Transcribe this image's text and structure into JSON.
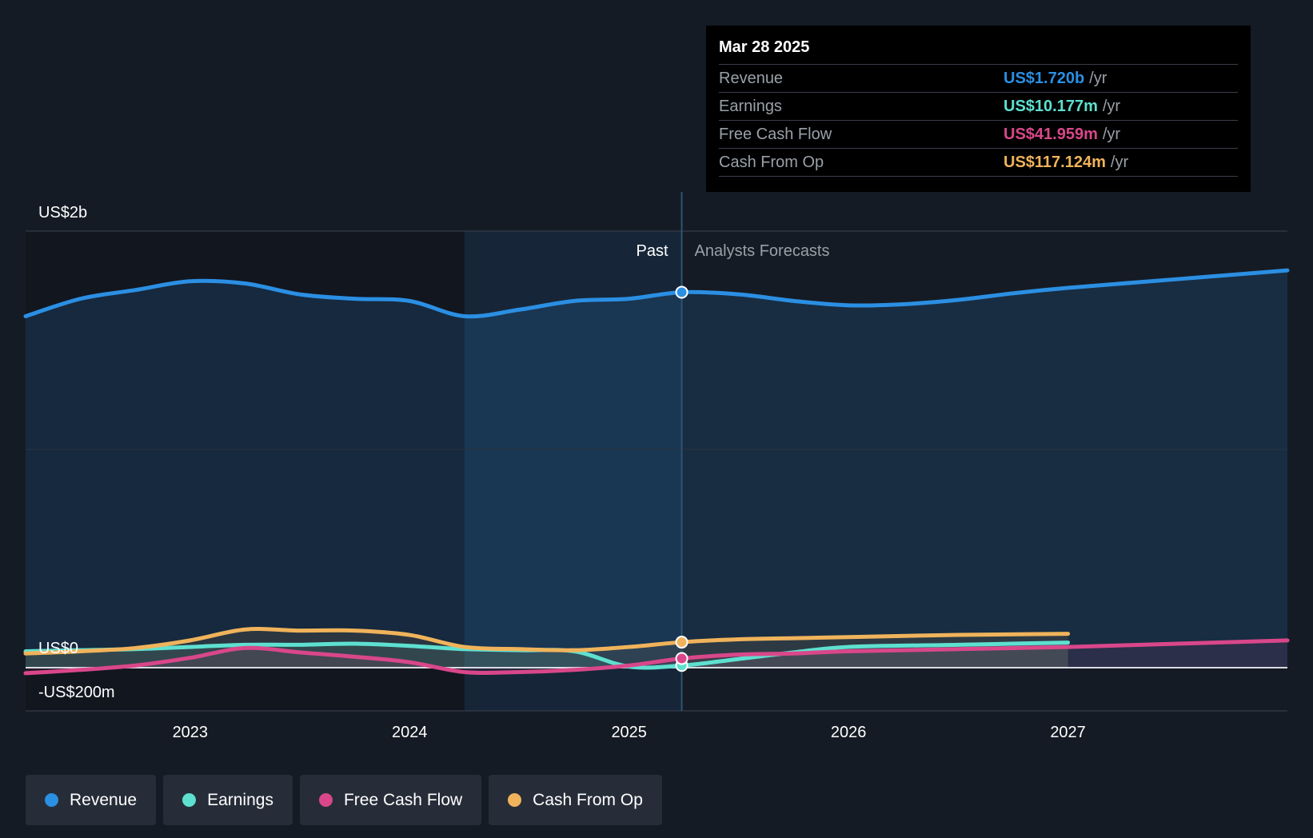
{
  "tooltip": {
    "date": "Mar 28 2025",
    "rows": [
      {
        "name": "Revenue",
        "value": "US$1.720b",
        "unit": "/yr",
        "color": "#2b8fe3"
      },
      {
        "name": "Earnings",
        "value": "US$10.177m",
        "unit": "/yr",
        "color": "#5ee0d0"
      },
      {
        "name": "Free Cash Flow",
        "value": "US$41.959m",
        "unit": "/yr",
        "color": "#d9478a"
      },
      {
        "name": "Cash From Op",
        "value": "US$117.124m",
        "unit": "/yr",
        "color": "#f0b35b"
      }
    ]
  },
  "legend": [
    {
      "label": "Revenue",
      "color": "#2b8fe3"
    },
    {
      "label": "Earnings",
      "color": "#5ee0d0"
    },
    {
      "label": "Free Cash Flow",
      "color": "#d9478a"
    },
    {
      "label": "Cash From Op",
      "color": "#f0b35b"
    }
  ],
  "chart_data": {
    "type": "area",
    "y_axis_labels": [
      "US$2b",
      "US$0",
      "-US$200m"
    ],
    "ylim": [
      -200,
      2000
    ],
    "y_unit": "US$m",
    "x_ticks": [
      "2023",
      "2024",
      "2025",
      "2026",
      "2027"
    ],
    "xlim": [
      2022.25,
      2028.0
    ],
    "grid": true,
    "past_label": "Past",
    "forecast_label": "Analysts Forecasts",
    "past_highlight_start": 2024.25,
    "present_date": 2025.24,
    "series": [
      {
        "name": "Revenue",
        "color": "#2b8fe3",
        "x": [
          2022.25,
          2022.5,
          2022.75,
          2023.0,
          2023.25,
          2023.5,
          2023.75,
          2024.0,
          2024.25,
          2024.5,
          2024.75,
          2025.0,
          2025.24,
          2025.5,
          2025.75,
          2026.0,
          2026.25,
          2026.5,
          2026.75,
          2027.0,
          2027.5,
          2028.0
        ],
        "values": [
          1610,
          1690,
          1730,
          1770,
          1760,
          1710,
          1690,
          1680,
          1610,
          1640,
          1680,
          1690,
          1720,
          1710,
          1680,
          1660,
          1665,
          1685,
          1715,
          1740,
          1780,
          1820
        ]
      },
      {
        "name": "Earnings",
        "color": "#5ee0d0",
        "x": [
          2022.25,
          2022.5,
          2022.75,
          2023.0,
          2023.25,
          2023.5,
          2023.75,
          2024.0,
          2024.25,
          2024.5,
          2024.75,
          2025.0,
          2025.24,
          2025.5,
          2025.75,
          2026.0,
          2026.5,
          2027.0
        ],
        "values": [
          75,
          80,
          85,
          95,
          105,
          105,
          110,
          100,
          85,
          80,
          75,
          5,
          10,
          40,
          70,
          95,
          105,
          115
        ]
      },
      {
        "name": "Free Cash Flow",
        "color": "#d9478a",
        "x": [
          2022.25,
          2022.5,
          2022.75,
          2023.0,
          2023.25,
          2023.5,
          2023.75,
          2024.0,
          2024.25,
          2024.5,
          2024.75,
          2025.0,
          2025.24,
          2025.5,
          2025.75,
          2026.0,
          2026.5,
          2027.0,
          2027.5,
          2028.0
        ],
        "values": [
          -25,
          -10,
          10,
          45,
          90,
          70,
          50,
          25,
          -20,
          -20,
          -10,
          10,
          42,
          60,
          65,
          75,
          85,
          95,
          110,
          125
        ]
      },
      {
        "name": "Cash From Op",
        "color": "#f0b35b",
        "x": [
          2022.25,
          2022.5,
          2022.75,
          2023.0,
          2023.25,
          2023.5,
          2023.75,
          2024.0,
          2024.25,
          2024.5,
          2024.75,
          2025.0,
          2025.24,
          2025.5,
          2025.75,
          2026.0,
          2026.5,
          2027.0
        ],
        "values": [
          65,
          75,
          90,
          125,
          175,
          170,
          170,
          150,
          95,
          85,
          80,
          95,
          117,
          130,
          135,
          140,
          150,
          155
        ]
      }
    ]
  }
}
